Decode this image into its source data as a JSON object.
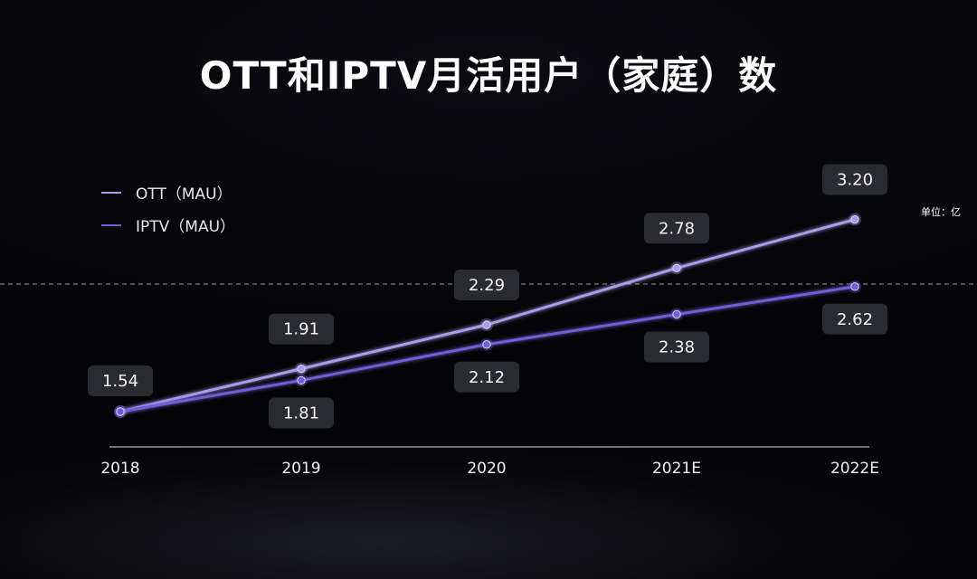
{
  "title": "OTT和IPTV月活用户（家庭）数",
  "unit_label": "单位：亿",
  "legend": [
    {
      "label": "OTT（MAU）",
      "color": "#a99ce8"
    },
    {
      "label": "IPTV（MAU）",
      "color": "#6f5fd6"
    }
  ],
  "chart_data": {
    "type": "line",
    "title": "OTT和IPTV月活用户（家庭）数",
    "categories": [
      "2018",
      "2019",
      "2020",
      "2021E",
      "2022E"
    ],
    "series": [
      {
        "name": "OTT（MAU）",
        "values": [
          1.54,
          1.91,
          2.29,
          2.78,
          3.2
        ],
        "labels": [
          "1.54",
          "1.91",
          "2.29",
          "2.78",
          "3.20"
        ],
        "color": "#a99ce8",
        "label_position": "above"
      },
      {
        "name": "IPTV（MAU）",
        "values": [
          1.54,
          1.81,
          2.12,
          2.38,
          2.62
        ],
        "labels": [
          "",
          "1.81",
          "2.12",
          "2.38",
          "2.62"
        ],
        "color": "#6f5fd6",
        "label_position": "below"
      }
    ],
    "ylim": [
      1.0,
      3.6
    ],
    "reference_line_value": 2.9,
    "xlabel": "",
    "ylabel": "",
    "grid": false,
    "legend_position": "top-left"
  }
}
